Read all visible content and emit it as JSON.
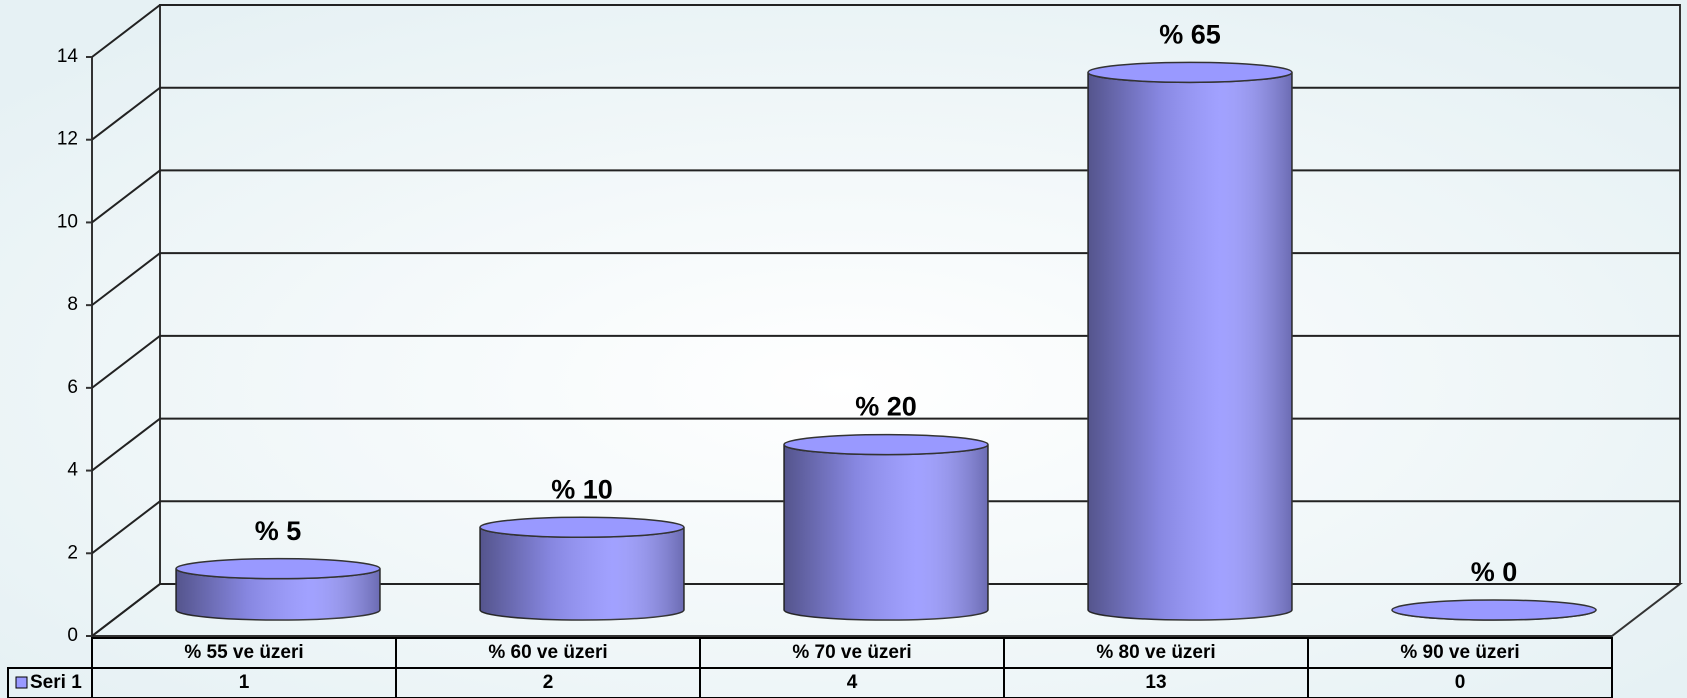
{
  "chart_data": {
    "type": "cylinder",
    "categories": [
      "% 55 ve üzeri",
      "% 60 ve üzeri",
      "% 70 ve üzeri",
      "% 80 ve üzeri",
      "% 90 ve üzeri"
    ],
    "series": [
      {
        "name": "Seri 1",
        "color": "#9999ff",
        "values": [
          1,
          2,
          4,
          13,
          0
        ]
      }
    ],
    "annotations": [
      "% 5",
      "% 10",
      "% 20",
      "% 65",
      "% 0"
    ],
    "ylim": [
      0,
      14
    ],
    "yticks": [
      0,
      2,
      4,
      6,
      8,
      10,
      12,
      14
    ],
    "grid": true
  }
}
